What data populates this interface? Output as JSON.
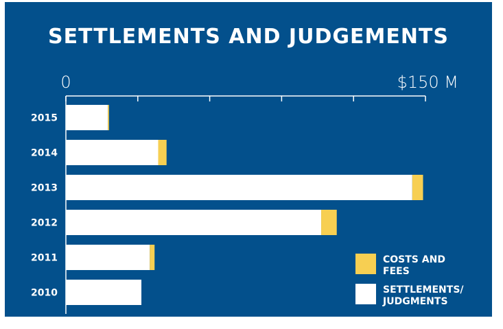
{
  "colors": {
    "background": "#03508c",
    "settlements": "#ffffff",
    "costs": "#f7cf52",
    "axis": "#ffffff"
  },
  "chart_data": {
    "type": "bar",
    "orientation": "horizontal",
    "stacked": true,
    "title": "SETTLEMENTS AND JUDGEMENTS",
    "categories": [
      "2015",
      "2014",
      "2013",
      "2012",
      "2011",
      "2010"
    ],
    "series": [
      {
        "name": "SETTLEMENTS/ JUDGMENTS",
        "values": [
          17.5,
          38.5,
          144.5,
          106.5,
          35,
          31.5
        ]
      },
      {
        "name": "COSTS AND FEES",
        "values": [
          0.5,
          3.5,
          4.5,
          6.5,
          2,
          0
        ]
      }
    ],
    "xlim": [
      0,
      150
    ],
    "x_tick_labels": {
      "start": "0",
      "end": "$150 M"
    },
    "minor_tick_step": 30,
    "legend_position": "bottom-right",
    "grid": false
  }
}
